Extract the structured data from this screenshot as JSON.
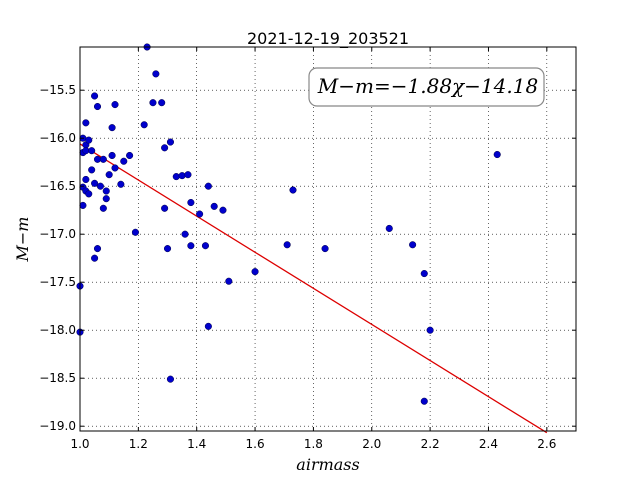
{
  "chart_data": {
    "type": "scatter",
    "title": "2021-12-19_203521",
    "xlabel": "airmass",
    "ylabel": "M−m",
    "annotation": "M−m=−1.88χ−14.18",
    "xlim": [
      1.0,
      2.7
    ],
    "ylim": [
      -19.05,
      -15.05
    ],
    "xticks": [
      "1.0",
      "1.2",
      "1.4",
      "1.6",
      "1.8",
      "2.0",
      "2.2",
      "2.4",
      "2.6"
    ],
    "yticks": [
      "−15.5",
      "−16.0",
      "−16.5",
      "−17.0",
      "−17.5",
      "−18.0",
      "−18.5",
      "−19.0"
    ],
    "grid": true,
    "point_color": "#0000cc",
    "fit_color": "#dd0000",
    "fit": {
      "slope": -1.88,
      "intercept": -14.18,
      "x_range": [
        1.0,
        2.6
      ]
    },
    "series": [
      {
        "x": [
          1.0,
          1.0,
          1.01,
          1.01,
          1.01,
          1.01,
          1.02,
          1.02,
          1.02,
          1.02,
          1.02,
          1.03,
          1.03,
          1.04,
          1.04,
          1.05,
          1.05,
          1.05,
          1.06,
          1.06,
          1.06,
          1.07,
          1.08,
          1.08,
          1.09,
          1.09,
          1.1,
          1.11,
          1.11,
          1.12,
          1.12,
          1.14,
          1.15,
          1.17,
          1.19,
          1.22,
          1.23,
          1.25,
          1.26,
          1.28,
          1.29,
          1.29,
          1.3,
          1.31,
          1.31,
          1.33,
          1.35,
          1.36,
          1.37,
          1.38,
          1.38,
          1.41,
          1.43,
          1.44,
          1.44,
          1.46,
          1.49,
          1.51,
          1.6,
          1.71,
          1.73,
          1.84,
          2.06,
          2.14,
          2.18,
          2.18,
          2.2,
          2.43
        ],
        "y": [
          -17.54,
          -18.02,
          -16.15,
          -16.51,
          -16.7,
          -16.0,
          -15.84,
          -16.55,
          -16.43,
          -16.07,
          -16.13,
          -16.58,
          -16.02,
          -16.13,
          -16.33,
          -15.56,
          -17.25,
          -16.47,
          -15.67,
          -17.15,
          -16.22,
          -16.5,
          -16.22,
          -16.73,
          -16.55,
          -16.63,
          -16.38,
          -15.89,
          -16.18,
          -15.65,
          -16.31,
          -16.48,
          -16.24,
          -16.18,
          -16.98,
          -15.86,
          -15.05,
          -15.63,
          -15.33,
          -15.63,
          -16.1,
          -16.73,
          -17.15,
          -18.51,
          -16.04,
          -16.4,
          -16.39,
          -17.0,
          -16.38,
          -16.67,
          -17.12,
          -16.79,
          -17.12,
          -17.96,
          -16.5,
          -16.71,
          -16.75,
          -17.49,
          -17.39,
          -17.11,
          -16.54,
          -17.15,
          -16.94,
          -17.11,
          -18.74,
          -17.41,
          -18.0,
          -16.17
        ]
      }
    ]
  }
}
